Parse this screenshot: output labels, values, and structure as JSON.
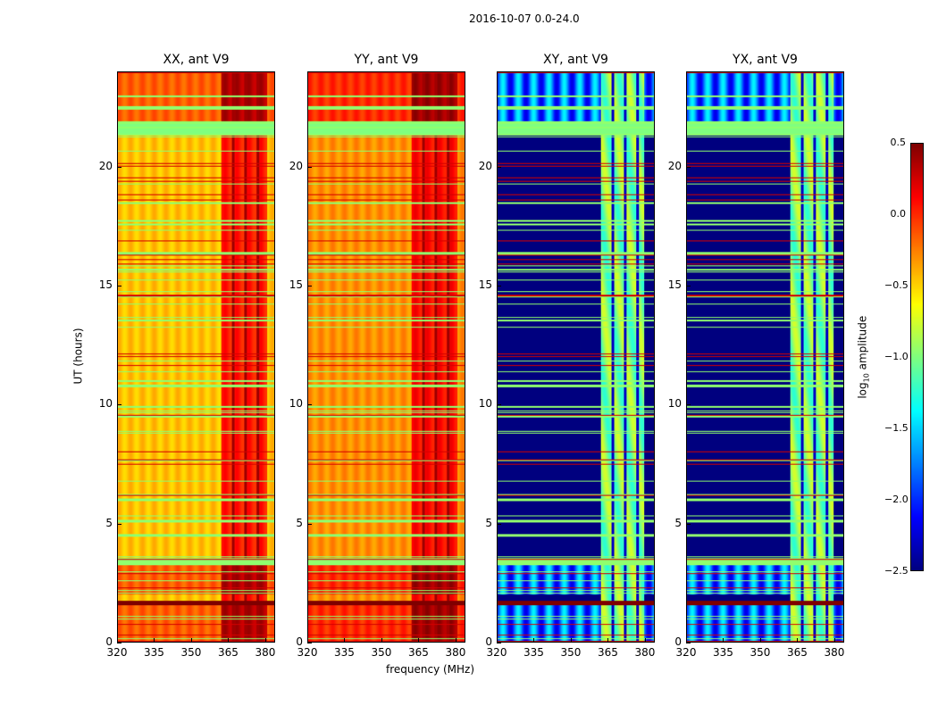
{
  "chart_data": {
    "type": "heatmap",
    "suptitle": "2016-10-07 0.0-24.0",
    "xlabel": "frequency (MHz)",
    "ylabel": "UT (hours)",
    "xlim": [
      320,
      384
    ],
    "ylim": [
      0,
      24
    ],
    "xticks": [
      "320",
      "335",
      "350",
      "365",
      "380"
    ],
    "yticks": [
      "0",
      "5",
      "10",
      "15",
      "20"
    ],
    "colorbar": {
      "label": "log10 amplitude",
      "label_main": "log",
      "label_sub": "10",
      "label_tail": " amplitude",
      "vmin": -2.5,
      "vmax": 0.5,
      "ticks": [
        "0.5",
        "0.0",
        "−0.5",
        "−1.0",
        "−1.5",
        "−2.0",
        "−2.5"
      ],
      "colormap": "jet"
    },
    "panels": [
      {
        "title": "XX, ant V9",
        "base_level": -0.45,
        "band_level": 0.05,
        "band_mhz": [
          362,
          381
        ]
      },
      {
        "title": "YY, ant V9",
        "base_level": -0.3,
        "band_level": 0.1,
        "band_mhz": [
          362,
          381
        ]
      },
      {
        "title": "XY, ant V9",
        "base_level": -2.5,
        "band_level": -1.0,
        "band_mhz": [
          362,
          380
        ]
      },
      {
        "title": "YX, ant V9",
        "base_level": -2.5,
        "band_level": -1.0,
        "band_mhz": [
          362,
          380
        ]
      }
    ],
    "flagged_ut_hours": [
      21.4,
      21.7,
      21.9,
      17.6,
      16.4,
      15.7,
      14.6,
      11.0,
      10.8,
      9.5,
      6.2,
      6.0,
      5.1,
      4.5,
      3.4,
      3.3,
      1.6,
      23.0,
      22.5
    ],
    "hot_ut_ranges": [
      [
        0,
        1.6
      ],
      [
        2.0,
        3.4
      ],
      [
        21.9,
        24
      ]
    ]
  }
}
